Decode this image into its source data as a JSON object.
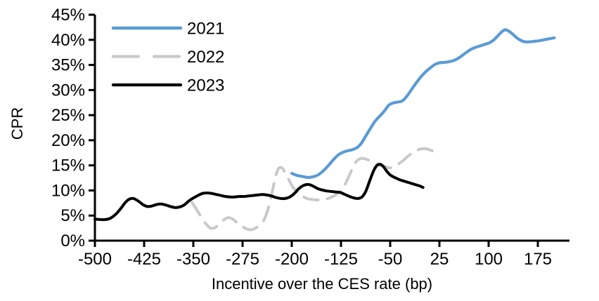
{
  "chart_data": {
    "type": "line",
    "title": "",
    "xlabel": "Incentive over the CES rate (bp)",
    "ylabel": "CPR",
    "xlim": [
      -500,
      210
    ],
    "ylim": [
      0,
      45
    ],
    "grid": false,
    "legend_position": "top-left-inside",
    "x_ticks": [
      -500,
      -425,
      -350,
      -275,
      -200,
      -125,
      -50,
      25,
      100,
      175
    ],
    "x_tick_labels": [
      "-500",
      "-425",
      "-350",
      "-275",
      "-200",
      "-125",
      "-50",
      "25",
      "100",
      "175"
    ],
    "y_ticks": [
      0,
      5,
      10,
      15,
      20,
      25,
      30,
      35,
      40,
      45
    ],
    "y_tick_labels": [
      "0%",
      "5%",
      "10%",
      "15%",
      "20%",
      "25%",
      "30%",
      "35%",
      "40%",
      "45%"
    ],
    "axis_color": "#000000",
    "series": [
      {
        "name": "2021",
        "color": "#5B9BD5",
        "dash": "solid",
        "stroke_width": 4.2,
        "layer": 2,
        "points": [
          [
            -200,
            13.4
          ],
          [
            -192,
            13.0
          ],
          [
            -184,
            12.8
          ],
          [
            -176,
            12.6
          ],
          [
            -168,
            12.7
          ],
          [
            -160,
            13.1
          ],
          [
            -152,
            13.9
          ],
          [
            -144,
            15.0
          ],
          [
            -136,
            16.2
          ],
          [
            -129,
            17.1
          ],
          [
            -122,
            17.6
          ],
          [
            -115,
            17.9
          ],
          [
            -108,
            18.1
          ],
          [
            -101,
            18.5
          ],
          [
            -94,
            19.4
          ],
          [
            -87,
            20.9
          ],
          [
            -80,
            22.4
          ],
          [
            -73,
            23.8
          ],
          [
            -66,
            24.8
          ],
          [
            -59,
            25.8
          ],
          [
            -52,
            27.0
          ],
          [
            -46,
            27.4
          ],
          [
            -39,
            27.6
          ],
          [
            -32,
            27.8
          ],
          [
            -25,
            28.7
          ],
          [
            -18,
            30.0
          ],
          [
            -11,
            31.3
          ],
          [
            -4,
            32.5
          ],
          [
            3,
            33.5
          ],
          [
            10,
            34.3
          ],
          [
            17,
            35.0
          ],
          [
            24,
            35.4
          ],
          [
            31,
            35.5
          ],
          [
            38,
            35.6
          ],
          [
            45,
            35.8
          ],
          [
            52,
            36.2
          ],
          [
            59,
            36.8
          ],
          [
            66,
            37.5
          ],
          [
            73,
            38.1
          ],
          [
            80,
            38.5
          ],
          [
            87,
            38.8
          ],
          [
            94,
            39.1
          ],
          [
            101,
            39.4
          ],
          [
            108,
            40.0
          ],
          [
            114,
            40.8
          ],
          [
            120,
            41.6
          ],
          [
            125,
            42.0
          ],
          [
            131,
            41.7
          ],
          [
            137,
            41.1
          ],
          [
            143,
            40.4
          ],
          [
            149,
            39.9
          ],
          [
            155,
            39.6
          ],
          [
            162,
            39.6
          ],
          [
            169,
            39.7
          ],
          [
            176,
            39.8
          ],
          [
            184,
            40.0
          ],
          [
            192,
            40.2
          ],
          [
            200,
            40.4
          ]
        ]
      },
      {
        "name": "2022",
        "color": "#C9C9C9",
        "dash": "dashed",
        "stroke_width": 4.0,
        "layer": 1,
        "points": [
          [
            -352,
            7.6
          ],
          [
            -345,
            6.2
          ],
          [
            -338,
            4.7
          ],
          [
            -331,
            3.4
          ],
          [
            -324,
            2.5
          ],
          [
            -317,
            2.6
          ],
          [
            -310,
            3.4
          ],
          [
            -303,
            4.2
          ],
          [
            -296,
            4.6
          ],
          [
            -289,
            4.2
          ],
          [
            -282,
            3.4
          ],
          [
            -275,
            2.8
          ],
          [
            -268,
            2.3
          ],
          [
            -261,
            2.2
          ],
          [
            -254,
            2.6
          ],
          [
            -247,
            3.3
          ],
          [
            -241,
            4.5
          ],
          [
            -235,
            6.8
          ],
          [
            -229,
            10.2
          ],
          [
            -224,
            13.1
          ],
          [
            -220,
            14.4
          ],
          [
            -215,
            14.5
          ],
          [
            -210,
            13.5
          ],
          [
            -204,
            12.0
          ],
          [
            -198,
            10.6
          ],
          [
            -191,
            9.6
          ],
          [
            -184,
            8.9
          ],
          [
            -177,
            8.4
          ],
          [
            -169,
            8.2
          ],
          [
            -161,
            8.1
          ],
          [
            -153,
            8.2
          ],
          [
            -145,
            8.4
          ],
          [
            -137,
            8.8
          ],
          [
            -130,
            9.4
          ],
          [
            -123,
            10.3
          ],
          [
            -116,
            11.9
          ],
          [
            -110,
            13.7
          ],
          [
            -105,
            15.2
          ],
          [
            -99,
            16.1
          ],
          [
            -93,
            16.4
          ],
          [
            -86,
            16.2
          ],
          [
            -79,
            15.8
          ],
          [
            -72,
            15.3
          ],
          [
            -65,
            15.0
          ],
          [
            -58,
            14.7
          ],
          [
            -51,
            14.5
          ],
          [
            -44,
            14.7
          ],
          [
            -37,
            15.3
          ],
          [
            -30,
            16.0
          ],
          [
            -23,
            16.8
          ],
          [
            -16,
            17.5
          ],
          [
            -9,
            18.0
          ],
          [
            -2,
            18.3
          ],
          [
            5,
            18.3
          ],
          [
            12,
            18.0
          ],
          [
            20,
            17.6
          ]
        ]
      },
      {
        "name": "2023",
        "color": "#000000",
        "dash": "solid",
        "stroke_width": 4.0,
        "layer": 3,
        "points": [
          [
            -500,
            4.3
          ],
          [
            -492,
            4.2
          ],
          [
            -484,
            4.2
          ],
          [
            -476,
            4.5
          ],
          [
            -468,
            5.3
          ],
          [
            -460,
            6.5
          ],
          [
            -453,
            7.7
          ],
          [
            -447,
            8.3
          ],
          [
            -441,
            8.4
          ],
          [
            -434,
            7.9
          ],
          [
            -427,
            7.2
          ],
          [
            -420,
            6.8
          ],
          [
            -413,
            6.9
          ],
          [
            -406,
            7.2
          ],
          [
            -399,
            7.3
          ],
          [
            -392,
            7.1
          ],
          [
            -385,
            6.8
          ],
          [
            -378,
            6.6
          ],
          [
            -371,
            6.7
          ],
          [
            -364,
            7.1
          ],
          [
            -357,
            7.9
          ],
          [
            -350,
            8.5
          ],
          [
            -343,
            9.0
          ],
          [
            -336,
            9.4
          ],
          [
            -329,
            9.5
          ],
          [
            -322,
            9.4
          ],
          [
            -315,
            9.2
          ],
          [
            -308,
            9.0
          ],
          [
            -301,
            8.8
          ],
          [
            -294,
            8.7
          ],
          [
            -287,
            8.7
          ],
          [
            -280,
            8.8
          ],
          [
            -273,
            8.8
          ],
          [
            -266,
            8.9
          ],
          [
            -259,
            9.0
          ],
          [
            -252,
            9.1
          ],
          [
            -245,
            9.2
          ],
          [
            -238,
            9.1
          ],
          [
            -231,
            8.9
          ],
          [
            -224,
            8.6
          ],
          [
            -217,
            8.4
          ],
          [
            -210,
            8.4
          ],
          [
            -203,
            8.7
          ],
          [
            -196,
            9.4
          ],
          [
            -189,
            10.4
          ],
          [
            -182,
            11.0
          ],
          [
            -175,
            11.2
          ],
          [
            -168,
            10.9
          ],
          [
            -161,
            10.4
          ],
          [
            -154,
            10.1
          ],
          [
            -147,
            9.9
          ],
          [
            -140,
            9.8
          ],
          [
            -133,
            9.7
          ],
          [
            -126,
            9.6
          ],
          [
            -119,
            9.2
          ],
          [
            -112,
            8.8
          ],
          [
            -105,
            8.5
          ],
          [
            -99,
            8.4
          ],
          [
            -93,
            8.7
          ],
          [
            -87,
            9.9
          ],
          [
            -81,
            12.0
          ],
          [
            -75,
            14.0
          ],
          [
            -70,
            15.0
          ],
          [
            -65,
            15.2
          ],
          [
            -60,
            14.7
          ],
          [
            -55,
            13.8
          ],
          [
            -50,
            13.1
          ],
          [
            -45,
            12.7
          ],
          [
            -40,
            12.4
          ],
          [
            -35,
            12.1
          ],
          [
            -30,
            11.9
          ],
          [
            -25,
            11.7
          ],
          [
            -20,
            11.5
          ],
          [
            -15,
            11.3
          ],
          [
            -10,
            11.1
          ],
          [
            -5,
            10.9
          ],
          [
            0,
            10.6
          ]
        ]
      }
    ]
  }
}
